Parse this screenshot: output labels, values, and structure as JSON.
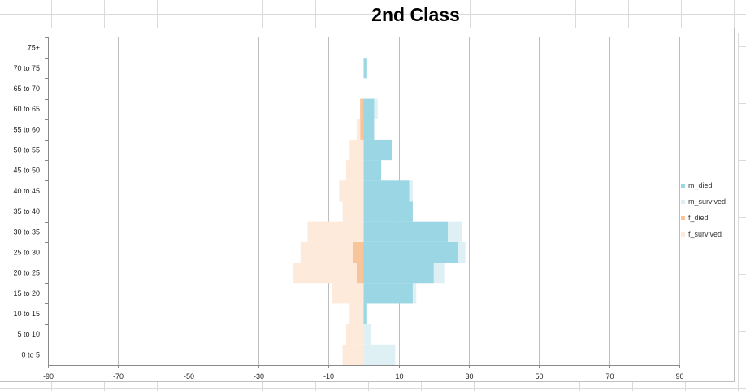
{
  "chart_data": {
    "type": "bar",
    "orientation": "horizontal",
    "title": "2nd Class",
    "categories": [
      "0 to 5",
      "5 to 10",
      "10 to 15",
      "15 to 20",
      "20 to 25",
      "25 to 30",
      "30 to 35",
      "35 to 40",
      "40 to 45",
      "45 to 50",
      "50 to 55",
      "55 to 60",
      "60 to 65",
      "65 to 70",
      "70 to 75",
      "75+"
    ],
    "xlim": [
      -90,
      90
    ],
    "xticks": [
      -90,
      -70,
      -50,
      -30,
      -10,
      10,
      30,
      50,
      70,
      90
    ],
    "grid": true,
    "legend_position": "right",
    "stacked": true,
    "series": [
      {
        "name": "m_died",
        "color": "#9ad6e3",
        "values": [
          0,
          0,
          1,
          14,
          20,
          27,
          24,
          14,
          13,
          5,
          8,
          3,
          3,
          0,
          1,
          0
        ]
      },
      {
        "name": "m_survived",
        "color": "#dff0f5",
        "values": [
          9,
          2,
          0,
          1,
          3,
          2,
          4,
          0,
          1,
          0,
          0,
          0,
          1,
          0,
          0,
          0
        ]
      },
      {
        "name": "f_died",
        "color": "#f8c49a",
        "values": [
          0,
          0,
          0,
          0,
          -2,
          -3,
          0,
          0,
          0,
          0,
          0,
          -1,
          -1,
          0,
          0,
          0
        ]
      },
      {
        "name": "f_survived",
        "color": "#fdeadb",
        "values": [
          -6,
          -5,
          -4,
          -9,
          -18,
          -15,
          -16,
          -6,
          -7,
          -5,
          -4,
          -1,
          0,
          0,
          0,
          0
        ]
      }
    ]
  }
}
